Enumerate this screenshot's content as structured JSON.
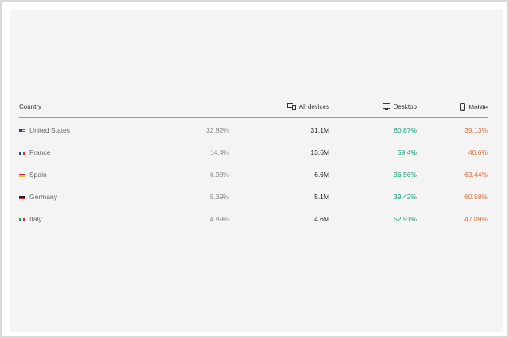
{
  "header": {
    "country": "Country",
    "all_devices": "All devices",
    "desktop": "Desktop",
    "mobile": "Mobile"
  },
  "rows": [
    {
      "country": "United States",
      "flag": "flag-us",
      "share": "32.82%",
      "all": "31.1M",
      "desktop": "60.87%",
      "mobile": "39.13%"
    },
    {
      "country": "France",
      "flag": "flag-fr",
      "share": "14.4%",
      "all": "13.6M",
      "desktop": "59.4%",
      "mobile": "40.6%"
    },
    {
      "country": "Spain",
      "flag": "flag-es",
      "share": "6.98%",
      "all": "6.6M",
      "desktop": "36.56%",
      "mobile": "63.44%"
    },
    {
      "country": "Germany",
      "flag": "flag-de",
      "share": "5.39%",
      "all": "5.1M",
      "desktop": "39.42%",
      "mobile": "60.58%"
    },
    {
      "country": "Italy",
      "flag": "flag-it",
      "share": "4.89%",
      "all": "4.6M",
      "desktop": "52.91%",
      "mobile": "47.09%"
    }
  ],
  "colors": {
    "desktop": "#15a07c",
    "mobile": "#e0713a"
  }
}
